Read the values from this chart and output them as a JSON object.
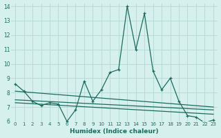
{
  "xlabel": "Humidex (Indice chaleur)",
  "bg_color": "#d6f0ee",
  "grid_color": "#b8dbd8",
  "line_color": "#1a6b5e",
  "xlim": [
    -0.5,
    23.5
  ],
  "ylim": [
    6,
    14.2
  ],
  "xtick_labels": [
    "0",
    "1",
    "2",
    "3",
    "4",
    "5",
    "6",
    "7",
    "8",
    "9",
    "10",
    "11",
    "12",
    "13",
    "14",
    "15",
    "16",
    "17",
    "18",
    "19",
    "20",
    "21",
    "22",
    "23"
  ],
  "yticks": [
    6,
    7,
    8,
    9,
    10,
    11,
    12,
    13,
    14
  ],
  "main_x": [
    0,
    1,
    2,
    3,
    4,
    5,
    6,
    7,
    8,
    9,
    10,
    11,
    12,
    13,
    14,
    15,
    16,
    17,
    18,
    19,
    20,
    21,
    22,
    23
  ],
  "main_y": [
    8.6,
    8.1,
    7.4,
    7.1,
    7.3,
    7.2,
    6.0,
    6.8,
    8.8,
    7.4,
    8.2,
    9.4,
    9.6,
    14.0,
    11.0,
    13.5,
    9.5,
    8.2,
    9.0,
    7.4,
    6.4,
    6.3,
    5.9,
    6.1
  ],
  "trend1_x": [
    0,
    23
  ],
  "trend1_y": [
    8.1,
    7.0
  ],
  "trend2_x": [
    0,
    23
  ],
  "trend2_y": [
    7.5,
    6.8
  ],
  "trend3_x": [
    0,
    23
  ],
  "trend3_y": [
    7.3,
    6.5
  ]
}
